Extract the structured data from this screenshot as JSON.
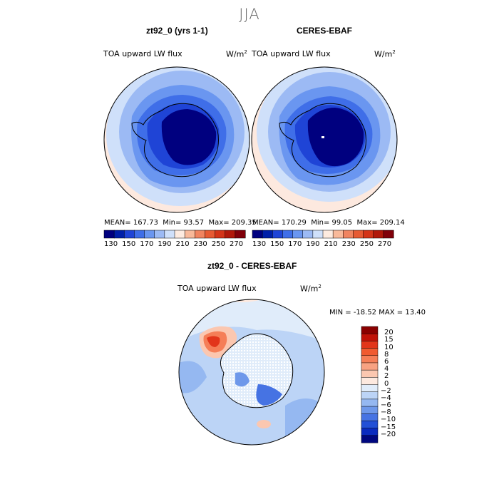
{
  "page": {
    "season": "JJA"
  },
  "panels": {
    "model": {
      "title": "zt92_0 (yrs 1-1)",
      "variable": "TOA upward LW flux",
      "unit_base": "W/m",
      "unit_exp": "2",
      "stats": {
        "mean_label": "MEAN=",
        "mean": "167.73",
        "min_label": "Min=",
        "min": "93.57",
        "max_label": "Max=",
        "max": "209.35"
      }
    },
    "obs": {
      "title": "CERES-EBAF",
      "variable": "TOA upward LW flux",
      "unit_base": "W/m",
      "unit_exp": "2",
      "stats": {
        "mean_label": "MEAN=",
        "mean": "170.29",
        "min_label": "Min=",
        "min": "99.05",
        "max_label": "Max=",
        "max": "209.14"
      }
    },
    "diff": {
      "title": "zt92_0 - CERES-EBAF",
      "variable": "TOA upward LW flux",
      "unit_base": "W/m",
      "unit_exp": "2",
      "stats": {
        "min_label": "MIN =",
        "min": "-18.52",
        "max_label": "MAX =",
        "max": "13.40"
      }
    }
  },
  "colorbar_top": {
    "ticks": [
      "130",
      "150",
      "170",
      "190",
      "210",
      "230",
      "250",
      "270"
    ],
    "colors": [
      "#00007f",
      "#001fa8",
      "#1f44d6",
      "#3f6ee8",
      "#6a96f0",
      "#9cbaf4",
      "#cfe0fa",
      "#fdebe0",
      "#f8b99a",
      "#f08460",
      "#e65a33",
      "#d33418",
      "#b0180a",
      "#80000a"
    ]
  },
  "colorbar_diff": {
    "labels": [
      "20",
      "15",
      "10",
      "8",
      "6",
      "4",
      "2",
      "0",
      "-2",
      "-4",
      "-6",
      "-8",
      "-10",
      "-15",
      "-20"
    ],
    "colors": [
      "#8a0000",
      "#c01208",
      "#e2351a",
      "#f05a30",
      "#f57e57",
      "#f8a282",
      "#fbc7b0",
      "#fde9df",
      "#e0ecfa",
      "#bcd4f6",
      "#95b8f1",
      "#6e98ea",
      "#4673e3",
      "#2350d6",
      "#0a2bbf",
      "#00077f"
    ]
  },
  "chart_data": [
    {
      "type": "heatmap",
      "title": "zt92_0 (yrs 1-1)",
      "variable": "TOA upward LW flux",
      "units": "W/m2",
      "projection": "south polar stereographic",
      "levels": [
        130,
        150,
        170,
        190,
        210,
        230,
        250,
        270
      ],
      "mean": 167.73,
      "min": 93.57,
      "max": 209.35
    },
    {
      "type": "heatmap",
      "title": "CERES-EBAF",
      "variable": "TOA upward LW flux",
      "units": "W/m2",
      "projection": "south polar stereographic",
      "levels": [
        130,
        150,
        170,
        190,
        210,
        230,
        250,
        270
      ],
      "mean": 170.29,
      "min": 99.05,
      "max": 209.14
    },
    {
      "type": "heatmap",
      "title": "zt92_0 - CERES-EBAF",
      "variable": "TOA upward LW flux",
      "units": "W/m2",
      "projection": "south polar stereographic",
      "levels": [
        -20,
        -15,
        -10,
        -8,
        -6,
        -4,
        -2,
        0,
        2,
        4,
        6,
        8,
        10,
        15,
        20
      ],
      "min": -18.52,
      "max": 13.4
    }
  ]
}
